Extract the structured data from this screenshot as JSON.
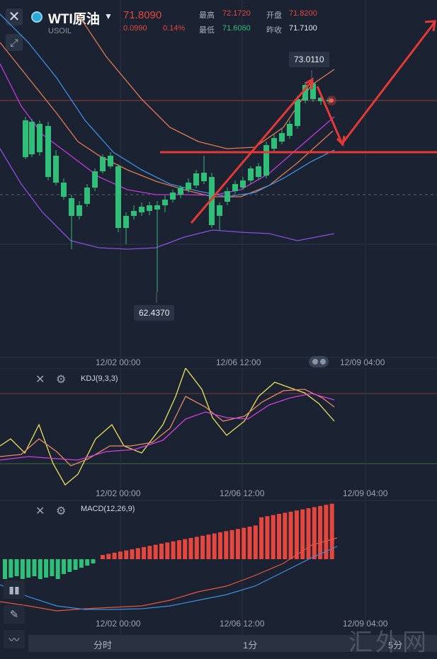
{
  "header": {
    "close_icon": "close-icon",
    "symbol_name": "WTI原油",
    "symbol_code": "USOIL",
    "dropdown_icon": "caret-down-icon",
    "last_price": "71.8090",
    "change": "0.0990",
    "change_pct": "0.14%",
    "high_label": "最高",
    "high_value": "72.1720",
    "open_label": "开盘",
    "open_value": "71.8200",
    "low_label": "最低",
    "low_value": "71.6060",
    "prev_close_label": "昨收",
    "prev_close_value": "71.7100"
  },
  "main_chart": {
    "max_label": "73.0110",
    "min_label": "62.4370",
    "time_labels": [
      "12/02 00:00",
      "12/06 12:00",
      "12/09 04:00"
    ]
  },
  "kdj_panel": {
    "title": "KDJ(9,3,3)",
    "time_labels": [
      "12/02 00:00",
      "12/06 12:00",
      "12/09 04:00"
    ]
  },
  "macd_panel": {
    "title": "MACD(12,26,9)",
    "time_labels": [
      "12/02 00:00",
      "12/06 12:00",
      "12/09 04:00"
    ]
  },
  "bottom_bar": {
    "tabs": [
      "分时",
      "1分",
      "5分"
    ]
  },
  "watermark": "汇外网",
  "colors": {
    "background": "#1b2231",
    "up": "#e5473f",
    "down": "#2fbf78",
    "ma_orange": "#e07b52",
    "ma_blue": "#3d8fe0",
    "ma_magenta": "#c23bd8",
    "ma_purple": "#8a4fe0"
  }
}
